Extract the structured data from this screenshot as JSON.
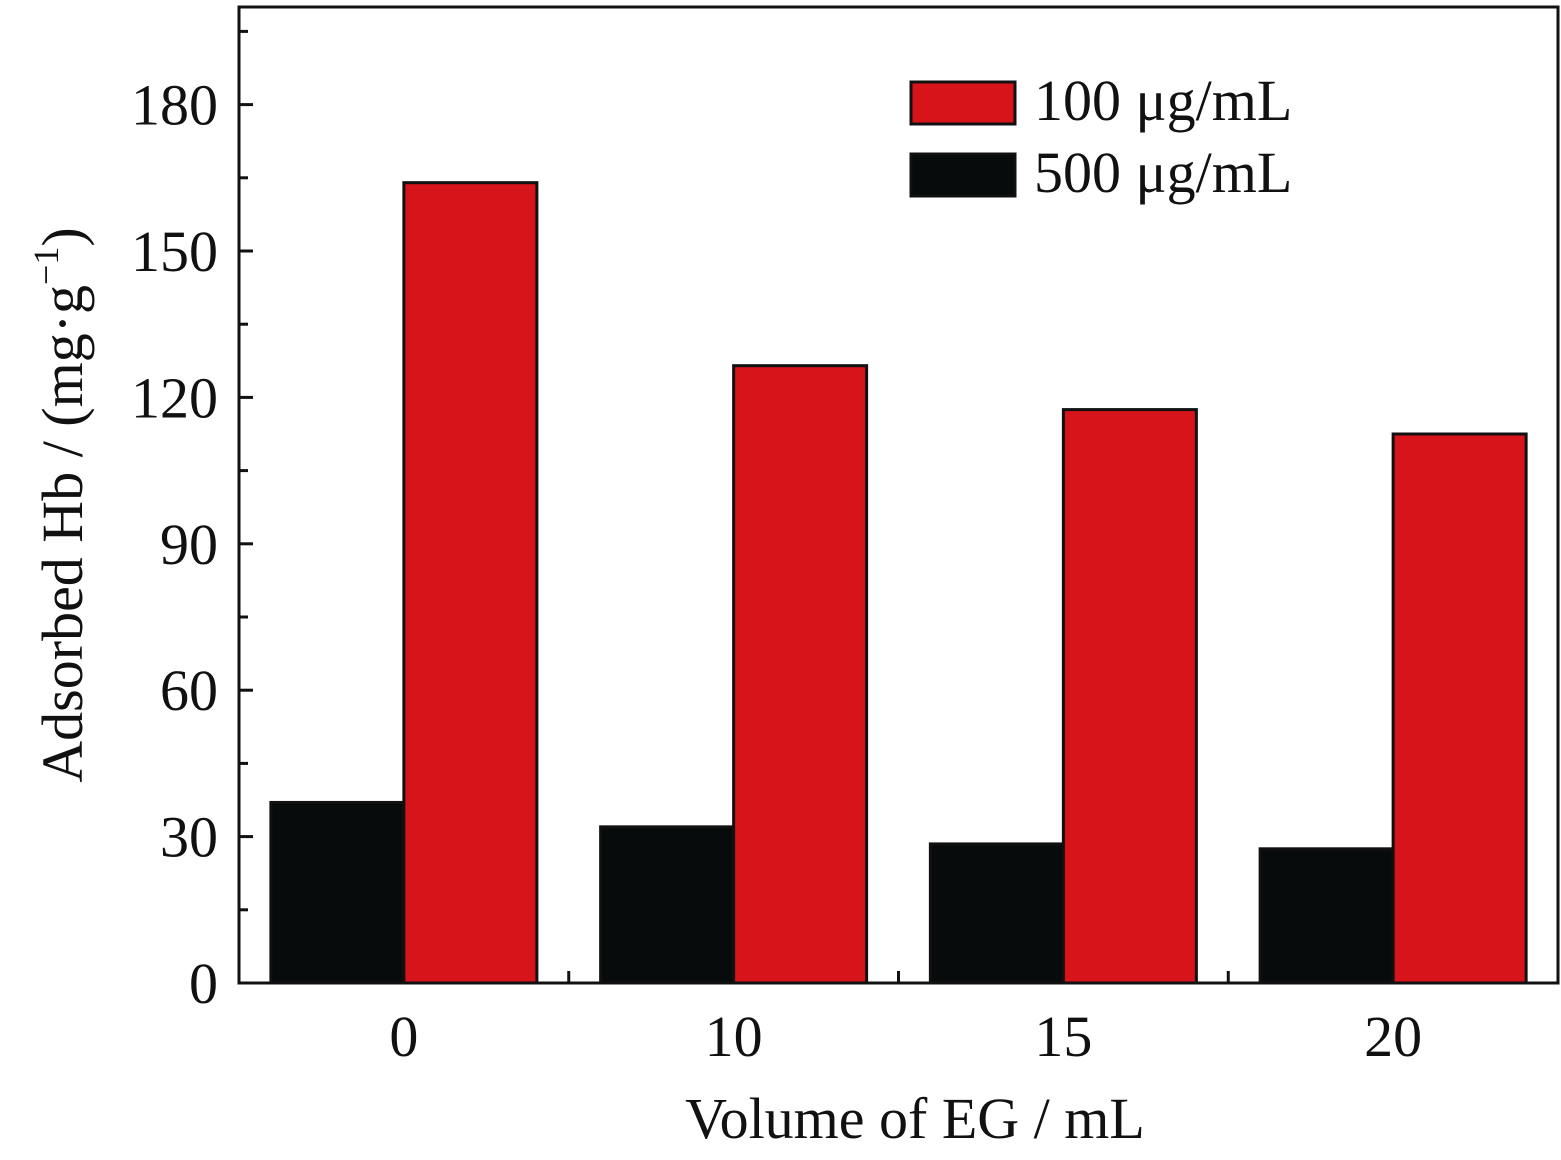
{
  "chart_data": {
    "type": "bar",
    "categories": [
      "0",
      "10",
      "15",
      "20"
    ],
    "series": [
      {
        "name": "500 μg/mL",
        "color": "#080b0c",
        "values": [
          37,
          32,
          28.5,
          27.5
        ]
      },
      {
        "name": "100 μg/mL",
        "color": "#d7141a",
        "values": [
          164,
          126.5,
          117.5,
          112.5
        ]
      }
    ],
    "xlabel": "Volume of EG / mL",
    "ylabel": "Adsorbed Hb / (mg·g",
    "ylabel_superscript": "−1",
    "ylabel_close": ")",
    "ylim": [
      0,
      200
    ],
    "yticks": [
      0,
      30,
      60,
      90,
      120,
      150,
      180
    ],
    "ytick_labels": [
      "0",
      "30",
      "60",
      "90",
      "120",
      "150",
      "180"
    ],
    "y_minor_step": 15,
    "grid": false,
    "legend_position": "top-right",
    "legend_order": [
      "100 μg/mL",
      "500 μg/mL"
    ]
  }
}
